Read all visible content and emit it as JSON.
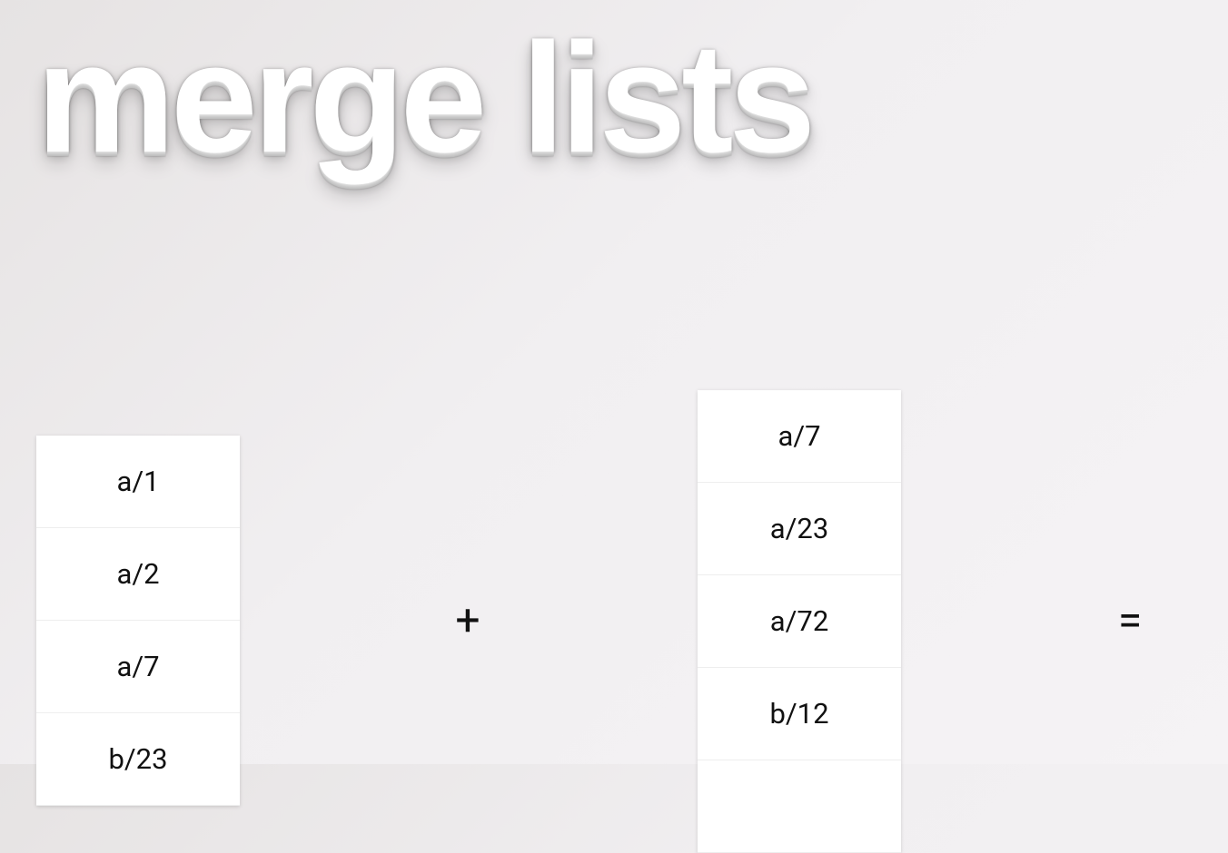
{
  "header": {
    "title": "merge lists"
  },
  "lists": [
    {
      "items": [
        "a/1",
        "a/2",
        "a/7",
        "b/23"
      ]
    },
    {
      "items": [
        "a/7",
        "a/23",
        "a/72",
        "b/12"
      ]
    }
  ],
  "operators": [
    "+",
    "="
  ]
}
